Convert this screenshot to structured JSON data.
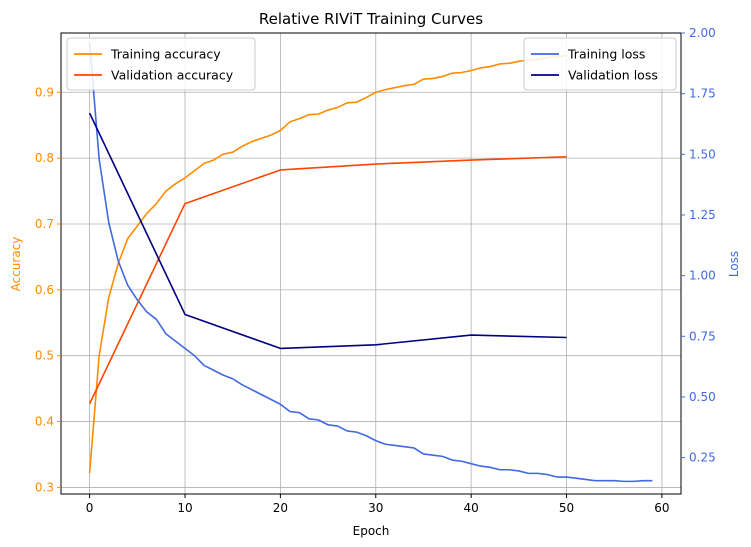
{
  "chart_data": {
    "type": "line",
    "title": "Relative RIViT Training Curves",
    "xlabel": "Epoch",
    "ylabel_left": "Accuracy",
    "ylabel_right": "Loss",
    "xlim": [
      -3,
      62
    ],
    "ylim_left": [
      0.29,
      0.99
    ],
    "ylim_right": [
      0.1,
      2.0
    ],
    "xticks": [
      0,
      10,
      20,
      30,
      40,
      50,
      60
    ],
    "yticks_left": [
      0.3,
      0.4,
      0.5,
      0.6,
      0.7,
      0.8,
      0.9
    ],
    "yticks_right": [
      0.25,
      0.5,
      0.75,
      1.0,
      1.25,
      1.5,
      1.75,
      2.0
    ],
    "ytick_labels_left": [
      "0.3",
      "0.4",
      "0.5",
      "0.6",
      "0.7",
      "0.8",
      "0.9"
    ],
    "ytick_labels_right": [
      "0.25",
      "0.50",
      "0.75",
      "1.00",
      "1.25",
      "1.50",
      "1.75",
      "2.00"
    ],
    "grid": true,
    "legend_left": "top-left",
    "legend_right": "top-right",
    "colors": {
      "left_axis": "#ff8c00",
      "right_axis": "#4169e1"
    },
    "series": [
      {
        "name": "Training accuracy",
        "axis": "left",
        "color": "#ff8c00",
        "x": [
          0,
          1,
          2,
          3,
          4,
          5,
          6,
          7,
          8,
          9,
          10,
          11,
          12,
          13,
          14,
          15,
          16,
          17,
          18,
          19,
          20,
          21,
          22,
          23,
          24,
          25,
          26,
          27,
          28,
          29,
          30,
          31,
          32,
          33,
          34,
          35,
          36,
          37,
          38,
          39,
          40,
          41,
          42,
          43,
          44,
          45,
          46,
          47,
          48,
          49,
          50
        ],
        "values": [
          0.322,
          0.5,
          0.588,
          0.64,
          0.678,
          0.697,
          0.716,
          0.731,
          0.75,
          0.761,
          0.77,
          0.781,
          0.792,
          0.797,
          0.806,
          0.809,
          0.818,
          0.825,
          0.83,
          0.835,
          0.842,
          0.855,
          0.86,
          0.866,
          0.867,
          0.873,
          0.877,
          0.884,
          0.885,
          0.892,
          0.9,
          0.904,
          0.907,
          0.91,
          0.912,
          0.92,
          0.921,
          0.924,
          0.929,
          0.93,
          0.933,
          0.937,
          0.939,
          0.943,
          0.944,
          0.947,
          0.949,
          0.95,
          0.953,
          0.954,
          0.956
        ]
      },
      {
        "name": "Validation accuracy",
        "axis": "left",
        "color": "#ff4500",
        "x": [
          0,
          10,
          20,
          30,
          40,
          50
        ],
        "values": [
          0.427,
          0.731,
          0.782,
          0.791,
          0.797,
          0.802
        ]
      },
      {
        "name": "Training loss",
        "axis": "right",
        "color": "#4169e1",
        "x": [
          0,
          1,
          2,
          3,
          4,
          5,
          6,
          7,
          8,
          9,
          10,
          11,
          12,
          13,
          14,
          15,
          16,
          17,
          18,
          19,
          20,
          21,
          22,
          23,
          24,
          25,
          26,
          27,
          28,
          29,
          30,
          31,
          32,
          33,
          34,
          35,
          36,
          37,
          38,
          39,
          40,
          41,
          42,
          43,
          44,
          45,
          46,
          47,
          48,
          49,
          50,
          51,
          52,
          53,
          54,
          55,
          56,
          57,
          58,
          59
        ],
        "values": [
          1.96,
          1.48,
          1.22,
          1.06,
          0.96,
          0.9,
          0.85,
          0.82,
          0.76,
          0.73,
          0.7,
          0.67,
          0.63,
          0.61,
          0.59,
          0.575,
          0.55,
          0.53,
          0.51,
          0.49,
          0.47,
          0.44,
          0.435,
          0.41,
          0.405,
          0.385,
          0.38,
          0.36,
          0.355,
          0.34,
          0.32,
          0.305,
          0.3,
          0.295,
          0.29,
          0.265,
          0.26,
          0.255,
          0.24,
          0.235,
          0.225,
          0.215,
          0.21,
          0.2,
          0.2,
          0.195,
          0.185,
          0.185,
          0.18,
          0.17,
          0.17,
          0.165,
          0.16,
          0.155,
          0.155,
          0.155,
          0.152,
          0.152,
          0.155,
          0.155
        ]
      },
      {
        "name": "Validation loss",
        "axis": "right",
        "color": "#000080",
        "x": [
          0,
          10,
          20,
          30,
          40,
          50
        ],
        "values": [
          1.67,
          0.84,
          0.7,
          0.715,
          0.755,
          0.745
        ]
      }
    ]
  }
}
